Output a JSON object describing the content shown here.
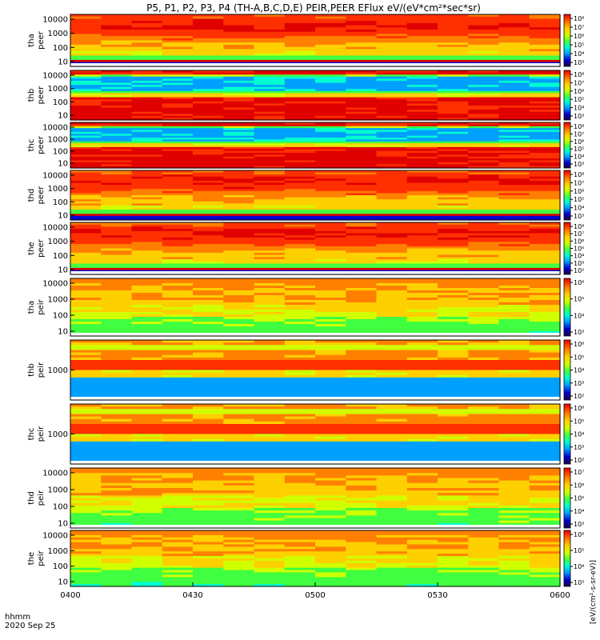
{
  "chart_data": {
    "type": "heatmap",
    "title": "P5, P1, P2, P3, P4 (TH-A,B,C,D,E) PEIR,PEER EFlux eV/(eV*cm²*sec*sr)",
    "x_axis": {
      "tick_labels": [
        "0400",
        "0430",
        "0500",
        "0530",
        "0600"
      ],
      "range": [
        "04:00",
        "06:00"
      ],
      "label_line1": "hhmm",
      "label_line2": "2020 Sep 25"
    },
    "color_scale_label": "[eV/(cm²-s-sr-eV)]",
    "colormap": [
      "#200040",
      "#0000d0",
      "#00a0ff",
      "#00ffd0",
      "#40ff40",
      "#d0ff00",
      "#ffd000",
      "#ff8000",
      "#ff3000",
      "#e00000"
    ],
    "panels": [
      {
        "probe": "tha",
        "instrument": "peer",
        "y_ticks": [
          "10000",
          "1000",
          "100",
          "10"
        ],
        "cb_ticks": [
          "10⁸",
          "10⁷",
          "10⁶",
          "10⁵",
          "10⁴",
          "10³"
        ],
        "pattern": "peer_hot"
      },
      {
        "probe": "thb",
        "instrument": "peer",
        "y_ticks": [
          "10000",
          "1000",
          "100",
          "10"
        ],
        "cb_ticks": [
          "10⁸",
          "10⁷",
          "10⁶",
          "10⁵",
          "10⁴",
          "10³"
        ],
        "pattern": "peer_cold"
      },
      {
        "probe": "thc",
        "instrument": "peer",
        "y_ticks": [
          "10000",
          "1000",
          "100",
          "10"
        ],
        "cb_ticks": [
          "10⁸",
          "10⁷",
          "10⁶",
          "10⁵",
          "10⁴",
          "10³"
        ],
        "pattern": "peer_cold"
      },
      {
        "probe": "thd",
        "instrument": "peer",
        "y_ticks": [
          "10000",
          "1000",
          "100",
          "10"
        ],
        "cb_ticks": [
          "10⁸",
          "10⁷",
          "10⁶",
          "10⁵",
          "10⁴",
          "10³"
        ],
        "pattern": "peer_hot"
      },
      {
        "probe": "the",
        "instrument": "peer",
        "y_ticks": [
          "10000",
          "1000",
          "100",
          "10"
        ],
        "cb_ticks": [
          "10⁸",
          "10⁷",
          "10⁶",
          "10⁵",
          "10⁴",
          "10³",
          "10²"
        ],
        "pattern": "peer_hot"
      },
      {
        "probe": "tha",
        "instrument": "peir",
        "y_ticks": [
          "10000",
          "1000",
          "100",
          "10"
        ],
        "cb_ticks": [
          "10⁶",
          "10⁵",
          "10⁴",
          "10³"
        ],
        "pattern": "peir_hot"
      },
      {
        "probe": "thb",
        "instrument": "peir",
        "y_ticks": [
          "1000"
        ],
        "cb_ticks": [
          "10⁶",
          "10⁵",
          "10⁴",
          "10³",
          "10²"
        ],
        "pattern": "peir_cold"
      },
      {
        "probe": "thc",
        "instrument": "peir",
        "y_ticks": [
          "1000"
        ],
        "cb_ticks": [
          "10⁶",
          "10⁵",
          "10⁴",
          "10³",
          "10²"
        ],
        "pattern": "peir_cold"
      },
      {
        "probe": "thd",
        "instrument": "peir",
        "y_ticks": [
          "10000",
          "1000",
          "100",
          "10"
        ],
        "cb_ticks": [
          "10⁷",
          "10⁶",
          "10⁵",
          "10⁴",
          "10³"
        ],
        "pattern": "peir_hot"
      },
      {
        "probe": "the",
        "instrument": "peir",
        "y_ticks": [
          "10000",
          "1000",
          "100",
          "10"
        ],
        "cb_ticks": [
          "10⁶",
          "10⁵",
          "10⁴",
          "10³"
        ],
        "pattern": "peir_hot"
      }
    ]
  }
}
